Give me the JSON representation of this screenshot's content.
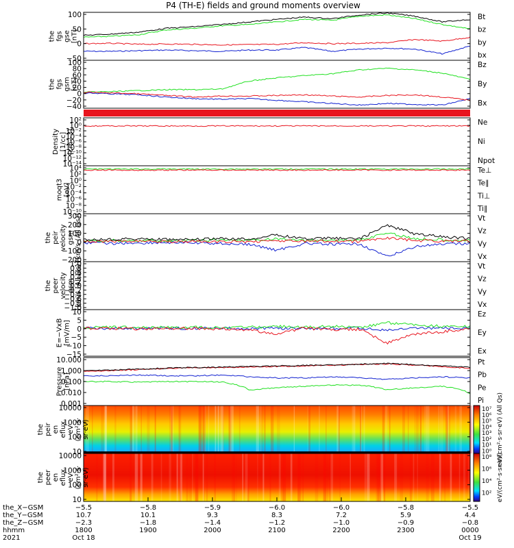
{
  "title": "P4 (TH-E) fields and ground moments overview",
  "colors": {
    "black": "#000000",
    "red": "#e8141e",
    "green": "#20e020",
    "blue": "#1020d0"
  },
  "panels": [
    {
      "id": "fgs-gse",
      "ylabel": [
        "the",
        "fgs",
        "gse",
        "[nT]"
      ],
      "ticks": [
        "100",
        "50",
        "0",
        "−50"
      ],
      "legend": [
        {
          "text": "Bt",
          "color": "#000000"
        },
        {
          "text": "bz",
          "color": "#e8141e"
        },
        {
          "text": "by",
          "color": "#20e020"
        },
        {
          "text": "bx",
          "color": "#1020d0"
        }
      ]
    },
    {
      "id": "fgs-gsm",
      "ylabel": [
        "the",
        "fgs",
        "gsm",
        "[nT]"
      ],
      "ticks": [
        "100",
        "80",
        "60",
        "40",
        "20",
        "0",
        "−20",
        "−40"
      ],
      "legend": [
        {
          "text": "Bz",
          "color": "#e8141e"
        },
        {
          "text": "By",
          "color": "#20e020"
        },
        {
          "text": "Bx",
          "color": "#1020d0"
        }
      ]
    },
    {
      "id": "density",
      "ylabel": [
        "Density",
        "[1/cc]",
        "[cm−3]"
      ],
      "ticks": [
        "10²",
        "10⁰",
        "10⁻²",
        "10⁻⁴",
        "10⁻⁶",
        "10⁻⁸",
        "10⁻¹⁰",
        "10⁻¹²",
        "10⁻¹⁴"
      ],
      "legend": [
        {
          "text": "Ne",
          "color": "#e8141e"
        },
        {
          "text": "Ni",
          "color": "#000000"
        },
        {
          "text": "Npot",
          "color": "#1020d0"
        }
      ]
    },
    {
      "id": "temperature",
      "ylabel": [
        "moqt3",
        "[eV]"
      ],
      "ticks": [
        "10⁴",
        "10²",
        "10⁰",
        "10⁻²",
        "10⁻⁴",
        "10⁻⁶",
        "10⁻⁸",
        "10⁻¹⁰"
      ],
      "legend": [
        {
          "text": "Te⊥",
          "color": "#e8141e"
        },
        {
          "text": "Te∥",
          "color": "#000000"
        },
        {
          "text": "Ti⊥",
          "color": "#1020d0"
        },
        {
          "text": "Ti∥",
          "color": "#20e020"
        }
      ]
    },
    {
      "id": "peir-velocity",
      "ylabel": [
        "the",
        "peir",
        "velocity",
        "gsm",
        "[km/s (All Qs)]"
      ],
      "ticks": [
        "300",
        "200",
        "100",
        "0",
        "−100",
        "−200"
      ],
      "legend": [
        {
          "text": "Vt",
          "color": "#000000"
        },
        {
          "text": "Vz",
          "color": "#e8141e"
        },
        {
          "text": "Vy",
          "color": "#20e020"
        },
        {
          "text": "Vx",
          "color": "#1020d0"
        }
      ]
    },
    {
      "id": "peer-velocity",
      "ylabel": [
        "the",
        "peer",
        "velocity",
        "gsm",
        "[km/s (All Qs)]"
      ],
      "ticks": [
        "1.0",
        "0.8",
        "0.6",
        "0.4",
        "0.2",
        "0.0",
        "−0.2",
        "−0.4",
        "−0.6",
        "−0.8",
        "−1.0"
      ],
      "legend": [
        {
          "text": "Vt",
          "color": "#000000"
        },
        {
          "text": "Vz",
          "color": "#e8141e"
        },
        {
          "text": "Vy",
          "color": "#20e020"
        },
        {
          "text": "Vx",
          "color": "#1020d0"
        }
      ]
    },
    {
      "id": "efield",
      "ylabel": [
        "E=−VxB",
        "[mV/m]"
      ],
      "ticks": [
        "10",
        "5",
        "0",
        "−5",
        "−10",
        "−15"
      ],
      "legend": [
        {
          "text": "Ez",
          "color": "#e8141e"
        },
        {
          "text": "Ey",
          "color": "#20e020"
        },
        {
          "text": "Ex",
          "color": "#1020d0"
        }
      ]
    },
    {
      "id": "pressure",
      "ylabel": [
        "Pressure",
        "[nPa]"
      ],
      "ticks": [
        "10.000",
        "1.000",
        "0.100",
        "0.010",
        "0.001"
      ],
      "legend": [
        {
          "text": "Pt",
          "color": "#000000"
        },
        {
          "text": "Pb",
          "color": "#e8141e"
        },
        {
          "text": "Pe",
          "color": "#20e020"
        },
        {
          "text": "Pi",
          "color": "#1020d0"
        }
      ]
    },
    {
      "id": "peir-eflux",
      "ylabel": [
        "the",
        "peir",
        "en",
        "eflux",
        "eV",
        "(cm²·s·",
        "sr·eV)"
      ],
      "ticks": [
        "10000",
        "1000",
        "100",
        "10"
      ],
      "cbar_ticks": [
        "10⁷",
        "10⁶",
        "10⁵",
        "10⁴",
        "10³",
        "10²",
        "10¹",
        "10⁰"
      ],
      "cbar_label": "eV/(cm²·s·sr·eV) (All Qs)"
    },
    {
      "id": "peer-eflux",
      "ylabel": [
        "the",
        "peer",
        "en",
        "eflux",
        "eV",
        "(cm²·s·",
        "sr·eV)"
      ],
      "ticks": [
        "10000",
        "1000",
        "100",
        "10"
      ],
      "cbar_ticks": [
        "10⁸",
        "10⁶",
        "10⁴",
        "10²"
      ],
      "cbar_label": "eV/(cm²·s·sr·eV)"
    }
  ],
  "xaxis": {
    "row_labels": [
      "the_X−GSM",
      "the_Y−GSM",
      "the_Z−GSM",
      "hhmm",
      "2021"
    ],
    "columns": [
      {
        "x": "−5.5",
        "y": "10.7",
        "z": "−2.3",
        "hhmm": "1800",
        "date": "Oct 18"
      },
      {
        "x": "−5.8",
        "y": "10.1",
        "z": "−1.8",
        "hhmm": "1900",
        "date": ""
      },
      {
        "x": "−5.9",
        "y": "9.3",
        "z": "−1.4",
        "hhmm": "2000",
        "date": ""
      },
      {
        "x": "−6.0",
        "y": "8.3",
        "z": "−1.2",
        "hhmm": "2100",
        "date": ""
      },
      {
        "x": "−6.0",
        "y": "7.2",
        "z": "−1.0",
        "hhmm": "2200",
        "date": ""
      },
      {
        "x": "−5.8",
        "y": "5.9",
        "z": "−0.9",
        "hhmm": "2300",
        "date": ""
      },
      {
        "x": "−5.5",
        "y": "4.4",
        "z": "−0.8",
        "hhmm": "0000",
        "date": "Oct 19"
      }
    ]
  },
  "chart_data": [
    {
      "type": "line",
      "panel": "fgs-gse",
      "ylim": [
        -50,
        100
      ],
      "series": [
        {
          "name": "Bt",
          "values": [
            28,
            32,
            38,
            50,
            55,
            62,
            70,
            78,
            85,
            80,
            92,
            98,
            88,
            70,
            78
          ]
        },
        {
          "name": "bz",
          "values": [
            2,
            3,
            0,
            1,
            0,
            -2,
            -1,
            0,
            5,
            2,
            3,
            5,
            15,
            10,
            22
          ]
        },
        {
          "name": "by",
          "values": [
            22,
            25,
            30,
            45,
            50,
            58,
            62,
            70,
            78,
            75,
            88,
            92,
            80,
            62,
            48
          ]
        },
        {
          "name": "bx",
          "values": [
            -22,
            -22,
            -20,
            -18,
            -20,
            -22,
            -18,
            -18,
            -10,
            -22,
            -15,
            -12,
            -15,
            -30,
            -5
          ]
        }
      ]
    },
    {
      "type": "line",
      "panel": "fgs-gsm",
      "ylim": [
        -50,
        100
      ],
      "series": [
        {
          "name": "Bz",
          "values": [
            0,
            -2,
            -5,
            -10,
            -15,
            -12,
            -12,
            -10,
            -8,
            -12,
            -15,
            -10,
            -8,
            -15,
            -25
          ]
        },
        {
          "name": "By",
          "values": [
            0,
            2,
            5,
            8,
            8,
            10,
            35,
            45,
            52,
            58,
            70,
            75,
            70,
            60,
            40
          ]
        },
        {
          "name": "Bx",
          "values": [
            -2,
            -5,
            -8,
            -15,
            -20,
            -22,
            -20,
            -25,
            -30,
            -35,
            -40,
            -35,
            -38,
            -40,
            -20
          ]
        }
      ]
    },
    {
      "type": "line",
      "panel": "density",
      "log": true,
      "series": [
        {
          "name": "Ne",
          "values": [
            0.5,
            0.5,
            0.5,
            0.4,
            0.4,
            0.5,
            0.4,
            0.5,
            0.4,
            0.5,
            0.5,
            0.4,
            0.4,
            0.5,
            0.6
          ]
        }
      ]
    },
    {
      "type": "line",
      "panel": "temperature",
      "log": true,
      "series": [
        {
          "name": "Te⊥",
          "values": [
            300,
            300,
            250,
            300,
            300,
            300,
            300,
            250,
            300,
            300,
            300,
            300,
            300,
            300,
            300
          ]
        },
        {
          "name": "Ti∥",
          "values": [
            3000,
            3000,
            3000,
            3000,
            3000,
            3000,
            3000,
            3000,
            3000,
            3000,
            3000,
            3000,
            3000,
            3000,
            3000
          ]
        }
      ]
    },
    {
      "type": "line",
      "panel": "peir-velocity",
      "ylim": [
        -200,
        300
      ],
      "series": [
        {
          "name": "Vt",
          "values": [
            30,
            35,
            40,
            30,
            30,
            40,
            35,
            80,
            40,
            45,
            40,
            180,
            90,
            60,
            40
          ]
        },
        {
          "name": "Vz",
          "values": [
            10,
            10,
            15,
            10,
            10,
            5,
            10,
            20,
            10,
            15,
            10,
            50,
            20,
            15,
            10
          ]
        },
        {
          "name": "Vy",
          "values": [
            15,
            20,
            20,
            15,
            20,
            25,
            20,
            40,
            20,
            25,
            25,
            100,
            40,
            30,
            20
          ]
        },
        {
          "name": "Vx",
          "values": [
            0,
            -10,
            -5,
            0,
            -5,
            -10,
            -20,
            -80,
            -10,
            -20,
            -15,
            -150,
            -40,
            -20,
            -10
          ]
        }
      ]
    },
    {
      "type": "line",
      "panel": "efield",
      "ylim": [
        -15,
        10
      ],
      "series": [
        {
          "name": "Ez",
          "values": [
            0,
            0,
            -0.5,
            0,
            0,
            -0.5,
            -1,
            -3,
            0,
            -1,
            -0.5,
            -8,
            -3,
            -2,
            0
          ]
        },
        {
          "name": "Ey",
          "values": [
            0.5,
            0.5,
            0.5,
            0.5,
            0.5,
            0.5,
            0.5,
            1,
            0.5,
            1,
            0.5,
            3,
            2,
            1,
            1
          ]
        },
        {
          "name": "Ex",
          "values": [
            0,
            0,
            0,
            0,
            0,
            0,
            0,
            0,
            0,
            0,
            0,
            -1,
            0,
            0,
            0
          ]
        }
      ]
    },
    {
      "type": "line",
      "panel": "pressure",
      "log": true,
      "ylim": [
        0.001,
        10
      ],
      "series": [
        {
          "name": "Pt",
          "values": [
            0.8,
            0.9,
            1.1,
            1.3,
            1.5,
            1.6,
            1.8,
            2.0,
            2.2,
            2.5,
            2.8,
            3.2,
            2.5,
            2.0,
            1.5
          ]
        },
        {
          "name": "Pb",
          "values": [
            0.7,
            0.8,
            1.0,
            1.2,
            1.4,
            1.5,
            1.6,
            1.8,
            2.0,
            2.3,
            2.6,
            3.0,
            2.3,
            1.8,
            1.2
          ]
        },
        {
          "name": "Pe",
          "values": [
            0.1,
            0.1,
            0.09,
            0.1,
            0.1,
            0.09,
            0.02,
            0.03,
            0.04,
            0.05,
            0.05,
            0.02,
            0.03,
            0.04,
            0.01
          ]
        },
        {
          "name": "Pi",
          "values": [
            0.3,
            0.3,
            0.35,
            0.3,
            0.3,
            0.35,
            0.25,
            0.2,
            0.2,
            0.25,
            0.2,
            0.15,
            0.2,
            0.25,
            0.2
          ]
        }
      ]
    },
    {
      "type": "heatmap",
      "panel": "peir-eflux"
    },
    {
      "type": "heatmap",
      "panel": "peer-eflux"
    }
  ]
}
